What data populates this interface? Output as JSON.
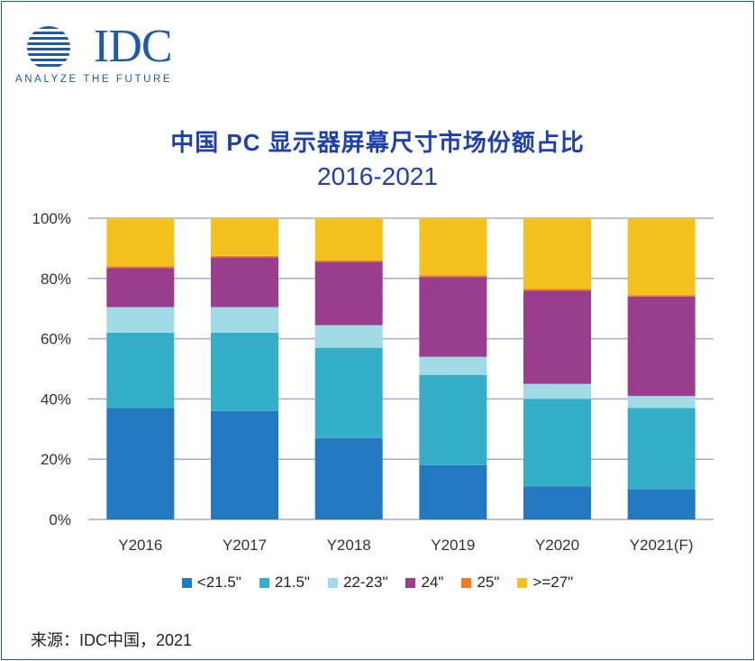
{
  "logo": {
    "brand": "IDC",
    "tagline": "ANALYZE THE FUTURE",
    "color": "#1f5aa6"
  },
  "chart_data": {
    "type": "bar",
    "stacked": true,
    "title": "中国 PC 显示器屏幕尺寸市场份额占比",
    "subtitle": "2016-2021",
    "categories": [
      "Y2016",
      "Y2017",
      "Y2018",
      "Y2019",
      "Y2020",
      "Y2021(F)"
    ],
    "ylim": [
      0,
      100
    ],
    "yticks": [
      "0%",
      "20%",
      "40%",
      "60%",
      "80%",
      "100%"
    ],
    "grid": true,
    "legend_position": "bottom",
    "series": [
      {
        "name": "<21.5\"",
        "color": "#2478bf",
        "values": [
          37,
          36,
          27,
          18,
          11,
          10
        ]
      },
      {
        "name": "21.5\"",
        "color": "#35afc8",
        "values": [
          25,
          26,
          30,
          30,
          29,
          27
        ]
      },
      {
        "name": "22-23\"",
        "color": "#a1dbe6",
        "values": [
          8.5,
          8.5,
          7.5,
          6,
          5,
          4
        ]
      },
      {
        "name": "24\"",
        "color": "#9b3d8f",
        "values": [
          13,
          16.5,
          21,
          26.5,
          31,
          33
        ]
      },
      {
        "name": "25\"",
        "color": "#f07c22",
        "values": [
          0.5,
          0.5,
          0.5,
          0.5,
          0.5,
          0.5
        ]
      },
      {
        "name": ">=27\"",
        "color": "#f5c11f",
        "values": [
          16,
          12.5,
          14,
          19,
          23.5,
          25.5
        ]
      }
    ]
  },
  "source": "来源：IDC中国，2021"
}
